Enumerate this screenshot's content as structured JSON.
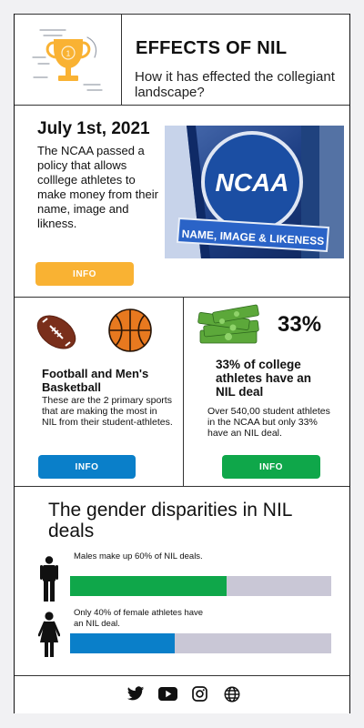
{
  "header": {
    "title": "EFFECTS OF NIL",
    "subtitle": "How it has effected the collegiant  landscape?",
    "icon": "trophy-icon",
    "trophy_number": "1"
  },
  "policy": {
    "date": "July 1st, 2021",
    "text": "The NCAA passed a policy that allows colllege athletes to make money from their name, image and likness.",
    "button": "INFO",
    "image_logo": "NCAA",
    "image_banner": "NAME, IMAGE & LIKENESS"
  },
  "sports": {
    "title": "Football and Men's Basketball",
    "text": "These are the 2 primary sports that are making the most in NIL from their student-athletes.",
    "button": "INFO"
  },
  "stats": {
    "percent": "33%",
    "title": "33% of college athletes have an NIL deal",
    "text": "Over 540,00 student athletes in the NCAA but only 33% have an NIL deal.",
    "button": "INFO"
  },
  "gender": {
    "title": "The gender disparities in NIL deals",
    "male_text": "Males make up 60% of NIL deals.",
    "male_value": 0.6,
    "female_text": "Only 40% of female athletes have an NIL deal.",
    "female_value": 0.4
  },
  "footer": {
    "icons": [
      "twitter-icon",
      "youtube-icon",
      "instagram-icon",
      "globe-icon"
    ]
  },
  "colors": {
    "accent_yellow": "#f9b233",
    "accent_blue": "#0a7fc9",
    "accent_green": "#0fa74a",
    "bar_bg": "#c9c7d6"
  }
}
